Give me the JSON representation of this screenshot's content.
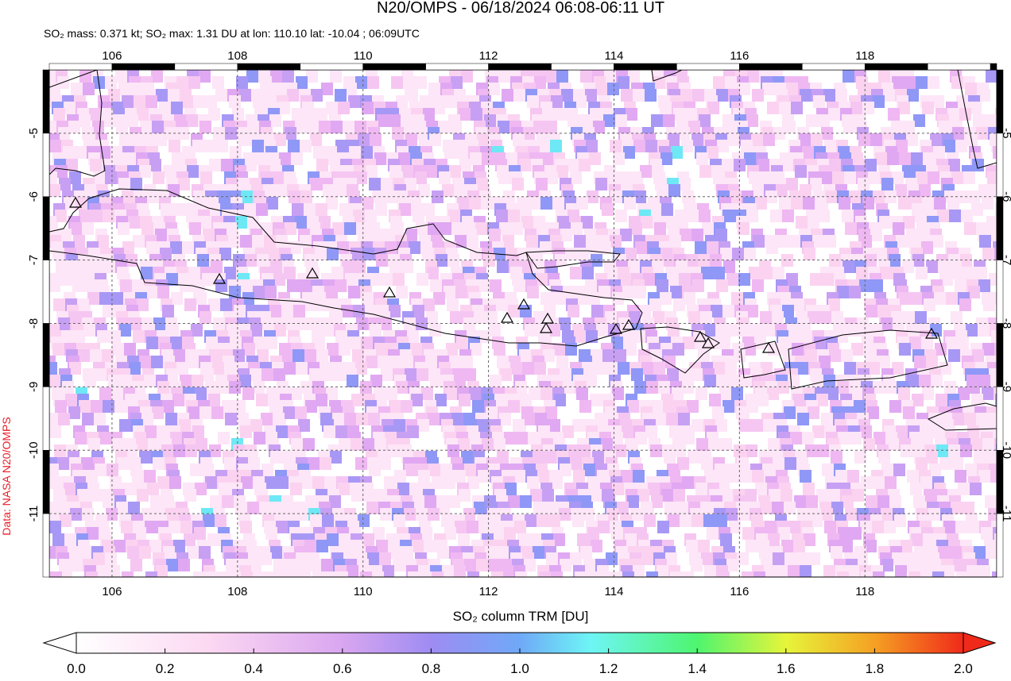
{
  "title": "N20/OMPS - 06/18/2024 06:08-06:11 UT",
  "subtitle": "SO₂ mass: 0.371 kt; SO₂ max: 1.31 DU at lon: 110.10 lat: -10.04 ; 06:09UTC",
  "source": "Data: NASA N20/OMPS",
  "map": {
    "xlim": [
      105,
      120.1
    ],
    "ylim": [
      -12,
      -4
    ],
    "xticks": [
      106,
      108,
      110,
      112,
      114,
      116,
      118
    ],
    "yticks": [
      -5,
      -6,
      -7,
      -8,
      -9,
      -10,
      -11
    ]
  },
  "colorbar": {
    "label": "SO₂ column TRM [DU]",
    "lim": [
      0,
      2
    ],
    "ticks": [
      {
        "value": 0,
        "label": "0.0"
      },
      0.2,
      0.4,
      0.6,
      0.8,
      {
        "value": 1,
        "label": "1.0"
      },
      1.2,
      1.4,
      1.6,
      1.8,
      {
        "value": 2,
        "label": "2.0"
      }
    ]
  }
}
